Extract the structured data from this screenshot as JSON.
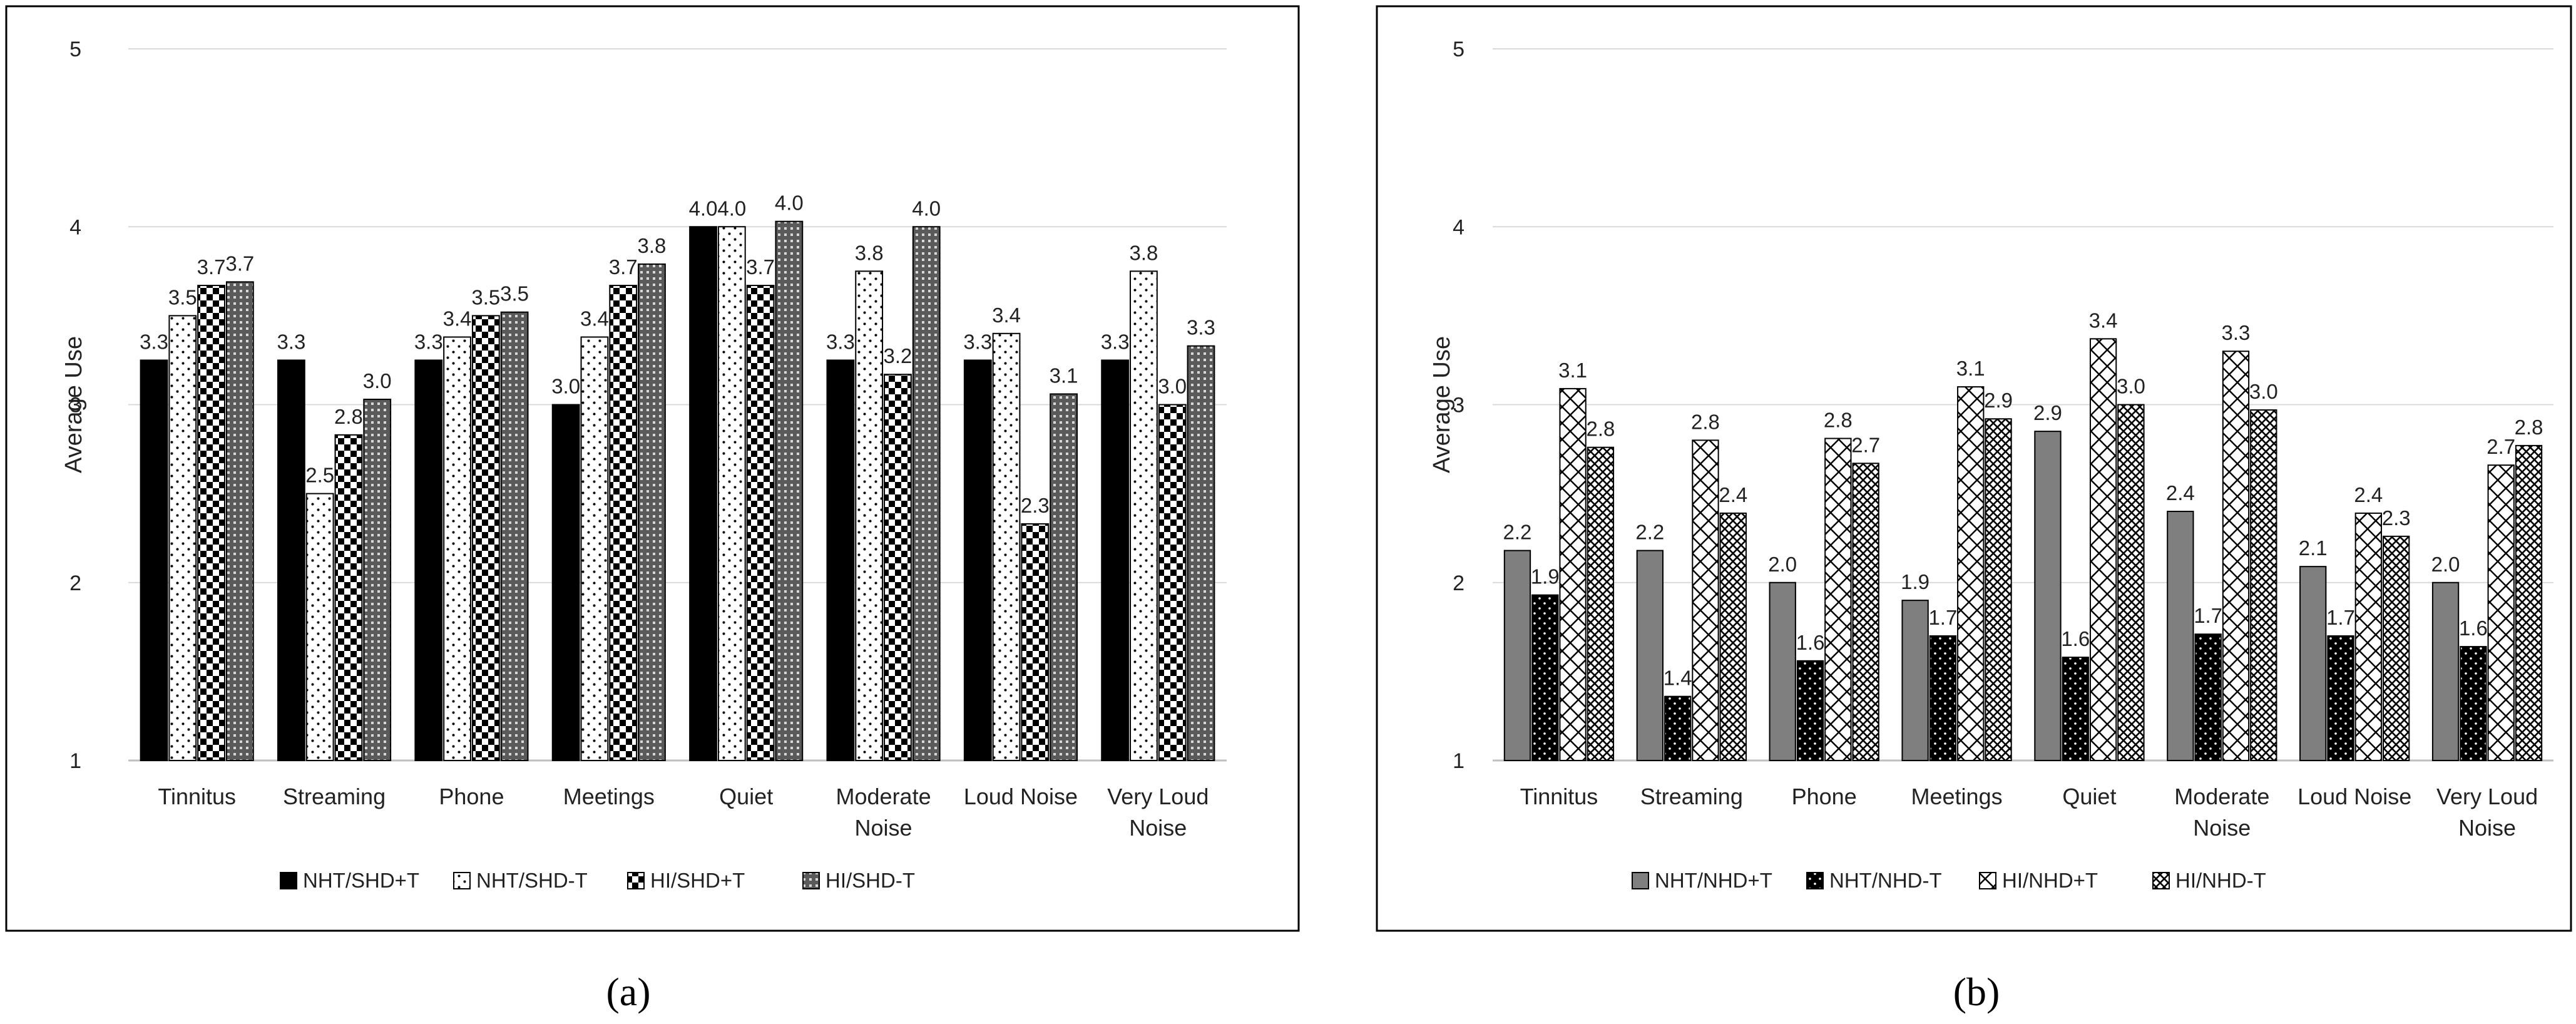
{
  "figure": {
    "caption_a": "(a)",
    "caption_b": "(b)"
  },
  "chart_data": [
    {
      "type": "bar",
      "panel": "a",
      "ylabel": "Average Use",
      "xlabel": "",
      "ylim": [
        1,
        5
      ],
      "yticks": [
        "1",
        "2",
        "3",
        "4",
        "5"
      ],
      "grid": true,
      "legend_position": "bottom",
      "categories": [
        [
          "Tinnitus"
        ],
        [
          "Streaming"
        ],
        [
          "Phone"
        ],
        [
          "Meetings"
        ],
        [
          "Quiet"
        ],
        [
          "Moderate",
          "Noise"
        ],
        [
          "Loud Noise"
        ],
        [
          "Very Loud",
          "Noise"
        ]
      ],
      "series": [
        {
          "name": "NHT/SHD+T",
          "pattern": "solid-black",
          "values": [
            3.25,
            3.25,
            3.25,
            3.0,
            4.0,
            3.25,
            3.25,
            3.25
          ],
          "labels": [
            "3.3",
            "3.3",
            "3.3",
            "3.0",
            "4.0",
            "3.3",
            "3.3",
            "3.3"
          ]
        },
        {
          "name": "NHT/SHD-T",
          "pattern": "dots",
          "values": [
            3.5,
            2.5,
            3.38,
            3.38,
            4.0,
            3.75,
            3.4,
            3.75
          ],
          "labels": [
            "3.5",
            "2.5",
            "3.4",
            "3.4",
            "4.0",
            "3.8",
            "3.4",
            "3.8"
          ]
        },
        {
          "name": "HI/SHD+T",
          "pattern": "checker",
          "values": [
            3.67,
            2.83,
            3.5,
            3.67,
            3.67,
            3.17,
            2.33,
            3.0
          ],
          "labels": [
            "3.7",
            "2.8",
            "3.5",
            "3.7",
            "3.7",
            "3.2",
            "2.3",
            "3.0"
          ]
        },
        {
          "name": "HI/SHD-T",
          "pattern": "grid",
          "values": [
            3.69,
            3.03,
            3.52,
            3.79,
            4.03,
            4.0,
            3.06,
            3.33
          ],
          "labels": [
            "3.7",
            "3.0",
            "3.5",
            "3.8",
            "4.0",
            "4.0",
            "3.1",
            "3.3"
          ]
        }
      ]
    },
    {
      "type": "bar",
      "panel": "b",
      "ylabel": "Average Use",
      "xlabel": "",
      "ylim": [
        1,
        5
      ],
      "yticks": [
        "1",
        "2",
        "3",
        "4",
        "5"
      ],
      "grid": true,
      "legend_position": "bottom",
      "categories": [
        [
          "Tinnitus"
        ],
        [
          "Streaming"
        ],
        [
          "Phone"
        ],
        [
          "Meetings"
        ],
        [
          "Quiet"
        ],
        [
          "Moderate",
          "Noise"
        ],
        [
          "Loud Noise"
        ],
        [
          "Very Loud",
          "Noise"
        ]
      ],
      "series": [
        {
          "name": "NHT/NHD+T",
          "pattern": "solid-gray",
          "values": [
            2.18,
            2.18,
            2.0,
            1.9,
            2.85,
            2.4,
            2.09,
            2.0
          ],
          "labels": [
            "2.2",
            "2.2",
            "2.0",
            "1.9",
            "2.9",
            "2.4",
            "2.1",
            "2.0"
          ]
        },
        {
          "name": "NHT/NHD-T",
          "pattern": "black-dots",
          "values": [
            1.93,
            1.36,
            1.56,
            1.7,
            1.58,
            1.71,
            1.7,
            1.64
          ],
          "labels": [
            "1.9",
            "1.4",
            "1.6",
            "1.7",
            "1.6",
            "1.7",
            "1.7",
            "1.6"
          ]
        },
        {
          "name": "HI/NHD+T",
          "pattern": "crosshatch",
          "values": [
            3.09,
            2.8,
            2.81,
            3.1,
            3.37,
            3.3,
            2.39,
            2.66
          ],
          "labels": [
            "3.1",
            "2.8",
            "2.8",
            "3.1",
            "3.4",
            "3.3",
            "2.4",
            "2.7"
          ]
        },
        {
          "name": "HI/NHD-T",
          "pattern": "dense-crosshatch",
          "values": [
            2.76,
            2.39,
            2.67,
            2.92,
            3.0,
            2.97,
            2.26,
            2.77
          ],
          "labels": [
            "2.8",
            "2.4",
            "2.7",
            "2.9",
            "3.0",
            "3.0",
            "2.3",
            "2.8"
          ]
        }
      ]
    }
  ]
}
